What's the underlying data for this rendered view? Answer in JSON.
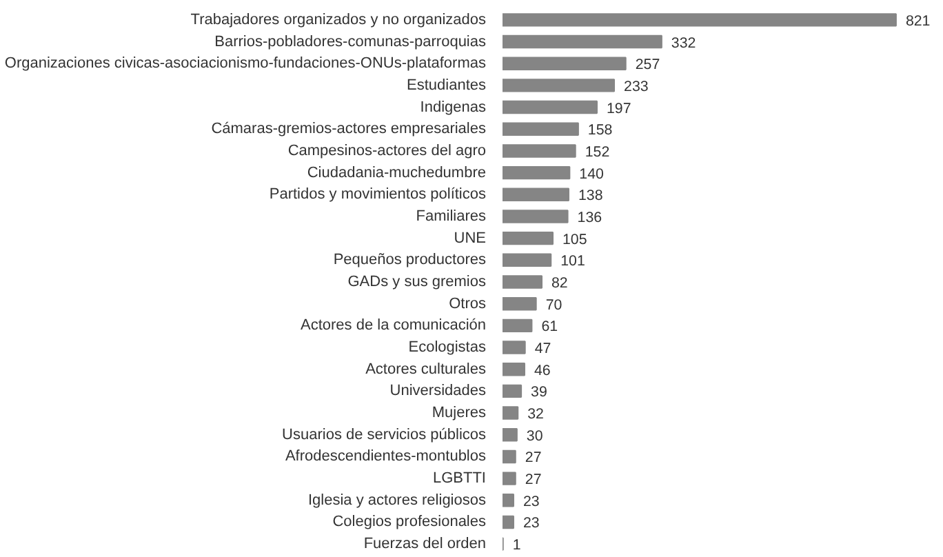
{
  "chart_data": {
    "type": "bar",
    "orientation": "horizontal",
    "data_labels": true,
    "grid": false,
    "color": "#858585",
    "categories": [
      "Trabajadores organizados y no organizados",
      "Barrios-pobladores-comunas-parroquias",
      "Organizaciones civicas-asociacionismo-fundaciones-ONUs-plataformas",
      "Estudiantes",
      "Indigenas",
      "Cámaras-gremios-actores empresariales",
      "Campesinos-actores del agro",
      "Ciudadania-muchedumbre",
      "Partidos y movimientos políticos",
      "Familiares",
      "UNE",
      "Pequeños productores",
      "GADs y sus gremios",
      "Otros",
      "Actores de la comunicación",
      "Ecologistas",
      "Actores culturales",
      "Universidades",
      "Mujeres",
      "Usuarios de servicios públicos",
      "Afrodescendientes-montublos",
      "LGBTTI",
      "Iglesia y actores religiosos",
      "Colegios profesionales",
      "Fuerzas del orden"
    ],
    "values": [
      821,
      332,
      257,
      233,
      197,
      158,
      152,
      140,
      138,
      136,
      105,
      101,
      82,
      70,
      61,
      47,
      46,
      39,
      32,
      30,
      27,
      27,
      23,
      23,
      1
    ]
  }
}
